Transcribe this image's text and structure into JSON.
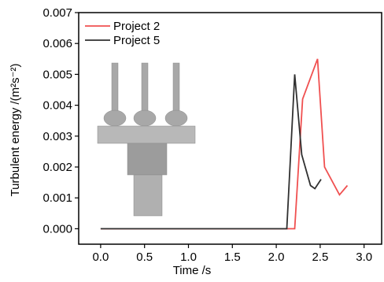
{
  "chart_data": {
    "type": "line",
    "xlabel": "Time /s",
    "ylabel": "Turbulent energy /(m²s⁻²)",
    "xlim": [
      -0.25,
      3.2
    ],
    "ylim": [
      -0.0005,
      0.007
    ],
    "xticks": [
      {
        "value": 0,
        "label": "0.0"
      },
      0.5,
      {
        "value": 1,
        "label": "1.0"
      },
      1.5,
      {
        "value": 2,
        "label": "2.0"
      },
      2.5,
      {
        "value": 3,
        "label": "3.0"
      }
    ],
    "yticks": [
      {
        "value": 0,
        "label": "0.000"
      },
      {
        "value": 0.001,
        "label": "0.001"
      },
      {
        "value": 0.002,
        "label": "0.002"
      },
      {
        "value": 0.003,
        "label": "0.003"
      },
      {
        "value": 0.004,
        "label": "0.004"
      },
      {
        "value": 0.005,
        "label": "0.005"
      },
      {
        "value": 0.006,
        "label": "0.006"
      },
      {
        "value": 0.007,
        "label": "0.007"
      }
    ],
    "legend": "upper left",
    "series": [
      {
        "name": "Project 2",
        "color": "#f05050",
        "x": [
          0,
          2.21,
          2.3,
          2.47,
          2.55,
          2.72,
          2.81
        ],
        "values": [
          0,
          0,
          0.0042,
          0.0055,
          0.002,
          0.0011,
          0.0014
        ]
      },
      {
        "name": "Project 5",
        "color": "#303030",
        "x": [
          0,
          2.12,
          2.21,
          2.29,
          2.39,
          2.44,
          2.51
        ],
        "values": [
          0,
          0,
          0.005,
          0.0024,
          0.0014,
          0.0013,
          0.0016
        ]
      }
    ]
  }
}
